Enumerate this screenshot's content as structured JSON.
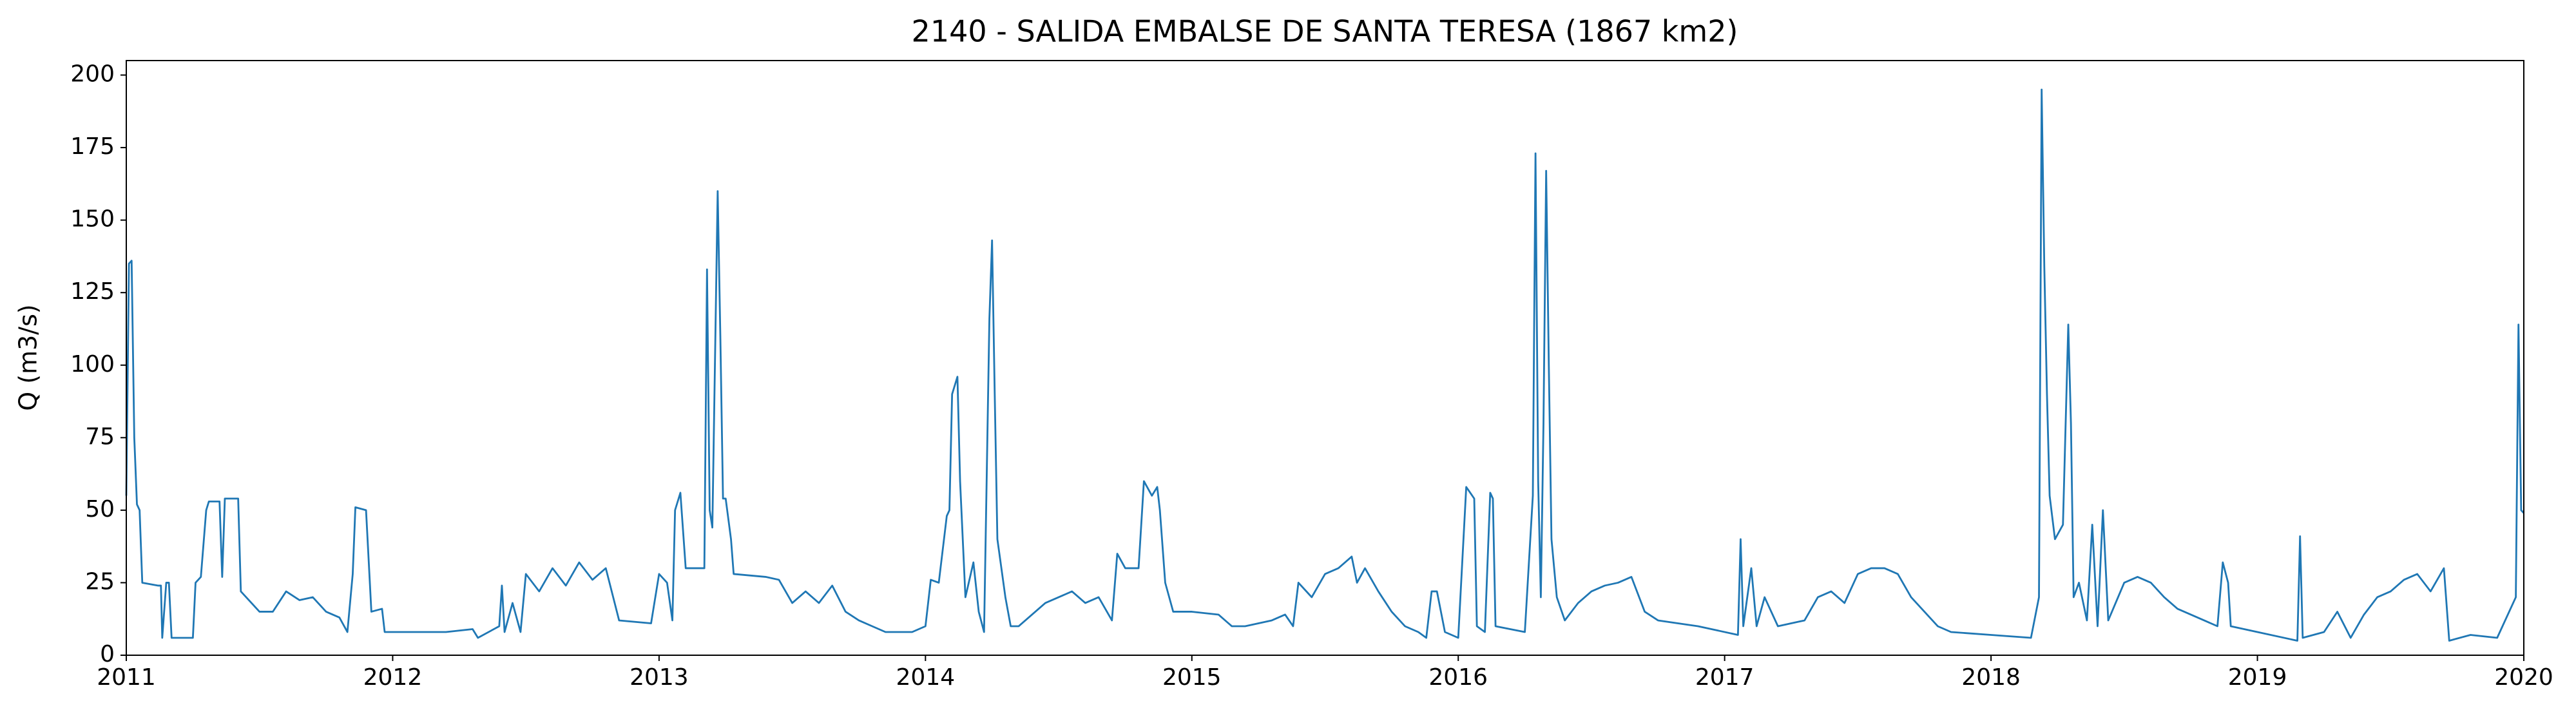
{
  "chart_data": {
    "type": "line",
    "title": "2140 - SALIDA EMBALSE DE SANTA TERESA (1867 km2)",
    "y_label": "Q (m3/s)",
    "xlim": [
      2011,
      2020
    ],
    "xticks": [
      2011,
      2012,
      2013,
      2014,
      2015,
      2016,
      2017,
      2018,
      2019,
      2020
    ],
    "ylim": [
      0,
      205
    ],
    "yticks": [
      0,
      25,
      50,
      75,
      100,
      125,
      150,
      175,
      200
    ],
    "grid": false,
    "series": [
      {
        "color": "#1f77b4",
        "x": [
          2011.0,
          2011.01,
          2011.02,
          2011.03,
          2011.04,
          2011.05,
          2011.06,
          2011.12,
          2011.13,
          2011.135,
          2011.15,
          2011.16,
          2011.17,
          2011.25,
          2011.26,
          2011.28,
          2011.3,
          2011.31,
          2011.35,
          2011.36,
          2011.37,
          2011.42,
          2011.43,
          2011.45,
          2011.5,
          2011.55,
          2011.6,
          2011.65,
          2011.7,
          2011.75,
          2011.8,
          2011.83,
          2011.85,
          2011.86,
          2011.9,
          2011.92,
          2011.96,
          2011.97,
          2012.2,
          2012.3,
          2012.32,
          2012.4,
          2012.41,
          2012.42,
          2012.45,
          2012.48,
          2012.5,
          2012.55,
          2012.6,
          2012.65,
          2012.7,
          2012.75,
          2012.8,
          2012.85,
          2012.97,
          2013.0,
          2013.03,
          2013.05,
          2013.06,
          2013.08,
          2013.1,
          2013.17,
          2013.18,
          2013.19,
          2013.2,
          2013.22,
          2013.23,
          2013.24,
          2013.25,
          2013.27,
          2013.28,
          2013.4,
          2013.45,
          2013.5,
          2013.55,
          2013.6,
          2013.65,
          2013.7,
          2013.75,
          2013.8,
          2013.85,
          2013.95,
          2014.0,
          2014.02,
          2014.05,
          2014.08,
          2014.09,
          2014.1,
          2014.12,
          2014.13,
          2014.15,
          2014.18,
          2014.2,
          2014.22,
          2014.24,
          2014.25,
          2014.26,
          2014.27,
          2014.3,
          2014.32,
          2014.35,
          2014.4,
          2014.45,
          2014.5,
          2014.55,
          2014.6,
          2014.65,
          2014.7,
          2014.72,
          2014.75,
          2014.8,
          2014.82,
          2014.85,
          2014.87,
          2014.88,
          2014.9,
          2014.93,
          2015.0,
          2015.1,
          2015.15,
          2015.2,
          2015.3,
          2015.35,
          2015.38,
          2015.4,
          2015.45,
          2015.5,
          2015.55,
          2015.6,
          2015.62,
          2015.65,
          2015.7,
          2015.75,
          2015.8,
          2015.85,
          2015.88,
          2015.9,
          2015.92,
          2015.95,
          2016.0,
          2016.03,
          2016.06,
          2016.07,
          2016.1,
          2016.12,
          2016.13,
          2016.14,
          2016.25,
          2016.28,
          2016.29,
          2016.3,
          2016.31,
          2016.32,
          2016.33,
          2016.34,
          2016.35,
          2016.37,
          2016.4,
          2016.45,
          2016.5,
          2016.55,
          2016.6,
          2016.65,
          2016.7,
          2016.75,
          2016.9,
          2017.05,
          2017.06,
          2017.07,
          2017.1,
          2017.12,
          2017.15,
          2017.2,
          2017.3,
          2017.35,
          2017.4,
          2017.45,
          2017.5,
          2017.55,
          2017.6,
          2017.65,
          2017.7,
          2017.75,
          2017.8,
          2017.85,
          2018.0,
          2018.15,
          2018.18,
          2018.19,
          2018.2,
          2018.21,
          2018.22,
          2018.24,
          2018.27,
          2018.29,
          2018.3,
          2018.31,
          2018.33,
          2018.36,
          2018.38,
          2018.4,
          2018.42,
          2018.44,
          2018.5,
          2018.55,
          2018.6,
          2018.65,
          2018.7,
          2018.8,
          2018.85,
          2018.87,
          2018.89,
          2018.9,
          2019.0,
          2019.15,
          2019.16,
          2019.17,
          2019.25,
          2019.3,
          2019.35,
          2019.4,
          2019.45,
          2019.5,
          2019.55,
          2019.6,
          2019.65,
          2019.7,
          2019.72,
          2019.8,
          2019.9,
          2019.97,
          2019.98,
          2019.99,
          2020.0
        ],
        "values": [
          55,
          135,
          136,
          75,
          52,
          50,
          25,
          24,
          24,
          6,
          25,
          25,
          6,
          6,
          25,
          27,
          50,
          53,
          53,
          27,
          54,
          54,
          22,
          20,
          15,
          15,
          22,
          19,
          20,
          15,
          13,
          8,
          28,
          51,
          50,
          15,
          16,
          8,
          8,
          9,
          6,
          10,
          24,
          8,
          18,
          8,
          28,
          22,
          30,
          24,
          32,
          26,
          30,
          12,
          11,
          28,
          25,
          12,
          50,
          56,
          30,
          30,
          133,
          50,
          44,
          160,
          110,
          54,
          54,
          40,
          28,
          27,
          26,
          18,
          22,
          18,
          24,
          15,
          12,
          10,
          8,
          8,
          10,
          26,
          25,
          48,
          50,
          90,
          96,
          60,
          20,
          32,
          15,
          8,
          116,
          143,
          90,
          40,
          20,
          10,
          10,
          14,
          18,
          20,
          22,
          18,
          20,
          12,
          35,
          30,
          30,
          60,
          55,
          58,
          50,
          25,
          15,
          15,
          14,
          10,
          10,
          12,
          14,
          10,
          25,
          20,
          28,
          30,
          34,
          25,
          30,
          22,
          15,
          10,
          8,
          6,
          22,
          22,
          8,
          6,
          58,
          54,
          10,
          8,
          56,
          54,
          10,
          8,
          55,
          173,
          60,
          20,
          80,
          167,
          100,
          40,
          20,
          12,
          18,
          22,
          24,
          25,
          27,
          15,
          12,
          10,
          7,
          40,
          10,
          30,
          10,
          20,
          10,
          12,
          20,
          22,
          18,
          28,
          30,
          30,
          28,
          20,
          15,
          10,
          8,
          7,
          6,
          20,
          195,
          134,
          90,
          55,
          40,
          45,
          114,
          80,
          20,
          25,
          12,
          45,
          10,
          50,
          12,
          25,
          27,
          25,
          20,
          16,
          12,
          10,
          32,
          25,
          10,
          8,
          5,
          41,
          6,
          8,
          15,
          6,
          14,
          20,
          22,
          26,
          28,
          22,
          30,
          5,
          7,
          6,
          20,
          114,
          50,
          49
        ]
      }
    ]
  }
}
